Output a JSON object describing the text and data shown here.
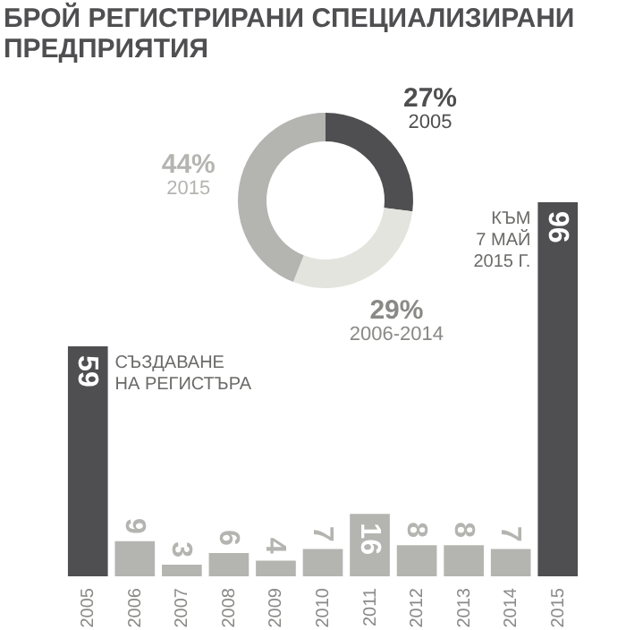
{
  "chart_data": [
    {
      "type": "donut",
      "title": "БРОЙ РЕГИСТРИРАНИ СПЕЦИАЛИЗИРАНИ ПРЕДПРИЯТИЯ",
      "categories": [
        "2005",
        "2006-2014",
        "2015"
      ],
      "values": [
        27,
        29,
        44
      ],
      "colors": [
        "#4f4f51",
        "#e4e4df",
        "#b4b4b1"
      ],
      "value_labels": [
        "27%",
        "29%",
        "44%"
      ]
    },
    {
      "type": "bar",
      "categories": [
        "2005",
        "2006",
        "2007",
        "2008",
        "2009",
        "2010",
        "2011",
        "2012",
        "2013",
        "2014",
        "2015"
      ],
      "values": [
        59,
        9,
        3,
        6,
        4,
        7,
        16,
        8,
        8,
        7,
        96
      ],
      "colors": [
        "#4f4f51",
        "#b4b4b1",
        "#b4b4b1",
        "#b4b4b1",
        "#b4b4b1",
        "#b4b4b1",
        "#b4b4b1",
        "#b4b4b1",
        "#b4b4b1",
        "#b4b4b1",
        "#4f4f51"
      ],
      "data_labels": true,
      "annotations": [
        {
          "text": "СЪЗДАВАНЕ\nНА РЕГИСТЪРА",
          "x": "2005",
          "y": 59
        },
        {
          "text": "КЪМ\n7 МАЙ\n2015 Г.",
          "x": "2015",
          "y": 96
        }
      ]
    }
  ]
}
